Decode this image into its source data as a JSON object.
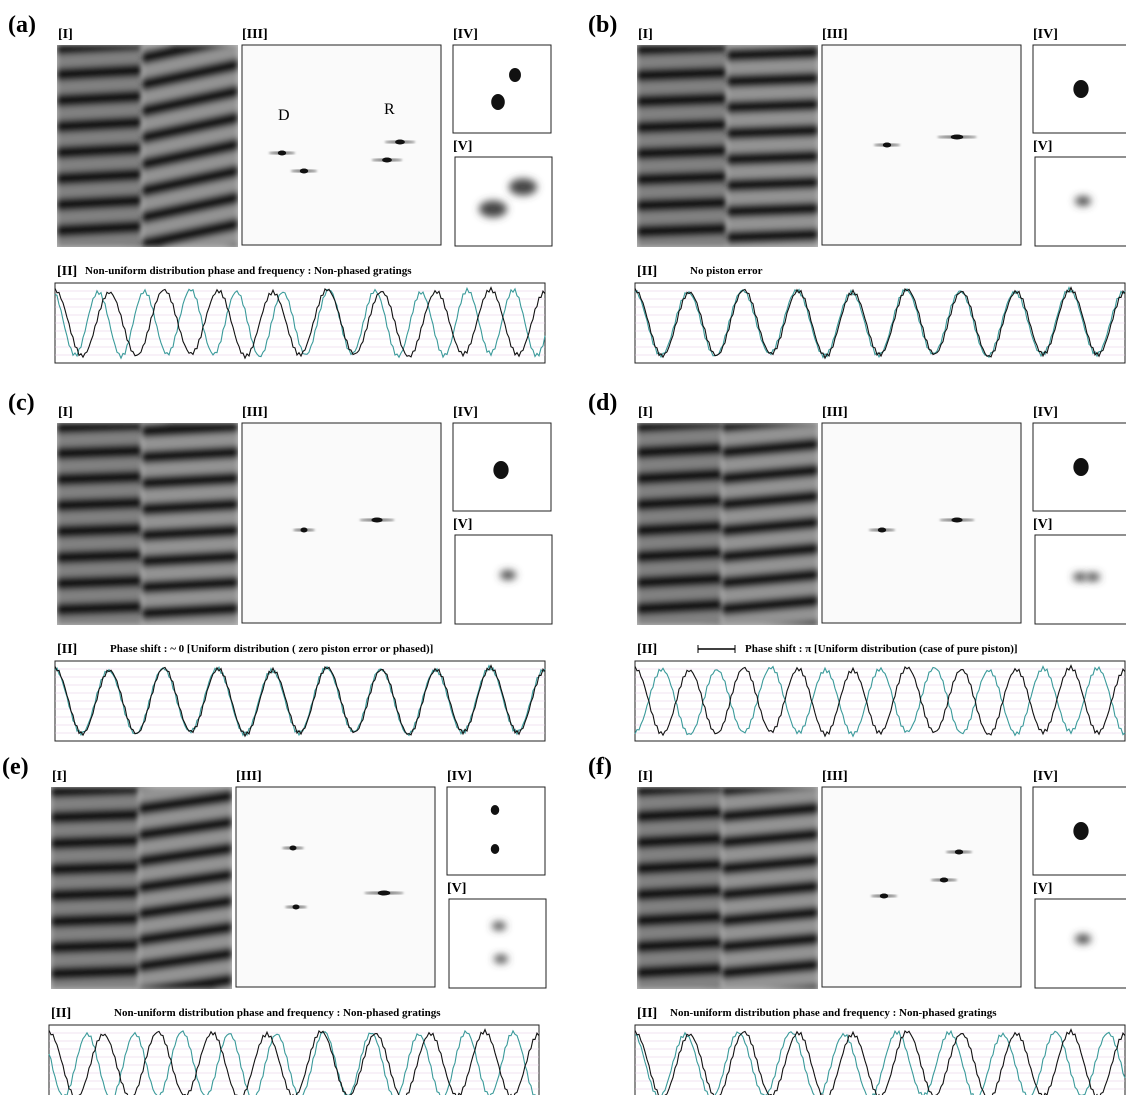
{
  "panels": [
    {
      "label": "(a)",
      "image_label": "[I]",
      "spectrum_label": "[III]",
      "peak_label": "[IV]",
      "zoom_label": "[V]",
      "profile_label": "[II]",
      "profile_caption": "Non-uniform distribution phase and frequency : Non-phased gratings",
      "annotations": [
        "D",
        "R"
      ]
    },
    {
      "label": "(b)",
      "image_label": "[I]",
      "spectrum_label": "[III]",
      "peak_label": "[IV]",
      "zoom_label": "[V]",
      "profile_label": "[II]",
      "profile_caption": "No piston error"
    },
    {
      "label": "(c)",
      "image_label": "[I]",
      "spectrum_label": "[III]",
      "peak_label": "[IV]",
      "zoom_label": "[V]",
      "profile_label": "[II]",
      "profile_caption": "Phase shift : ~ 0  [Uniform distribution ( zero piston error or phased)]"
    },
    {
      "label": "(d)",
      "image_label": "[I]",
      "spectrum_label": "[III]",
      "peak_label": "[IV]",
      "zoom_label": "[V]",
      "profile_label": "[II]",
      "profile_caption": "Phase shift : π  [Uniform distribution (case of pure piston)]"
    },
    {
      "label": "(e)",
      "image_label": "[I]",
      "spectrum_label": "[III]",
      "peak_label": "[IV]",
      "zoom_label": "[V]",
      "profile_label": "[II]",
      "profile_caption": "Non-uniform distribution phase and frequency : Non-phased gratings"
    },
    {
      "label": "(f)",
      "image_label": "[I]",
      "spectrum_label": "[III]",
      "peak_label": "[IV]",
      "zoom_label": "[V]",
      "profile_label": "[II]",
      "profile_caption": "Non-uniform distribution phase and frequency : Non-phased gratings"
    }
  ]
}
